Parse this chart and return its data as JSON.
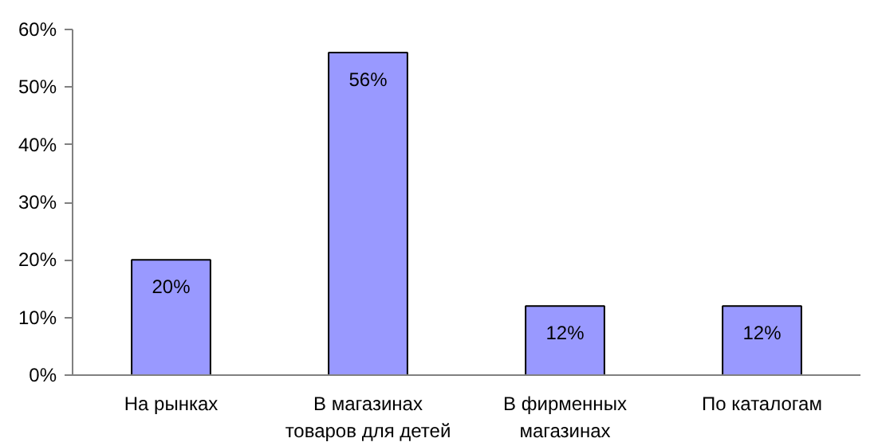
{
  "chart_data": {
    "type": "bar",
    "categories": [
      "На рынках",
      "В магазинах\nтоваров для детей",
      "В фирменных\nмагазинах",
      "По каталогам"
    ],
    "values": [
      20,
      56,
      12,
      12
    ],
    "color": "#9999ff",
    "value_labels": [
      "20%",
      "56%",
      "12%",
      "12%"
    ],
    "ylim": [
      0,
      60
    ],
    "yticks": [
      {
        "value": 0,
        "label": "0%"
      },
      {
        "value": 10,
        "label": "10%"
      },
      {
        "value": 20,
        "label": "20%"
      },
      {
        "value": 30,
        "label": "30%"
      },
      {
        "value": 40,
        "label": "40%"
      },
      {
        "value": 50,
        "label": "50%"
      },
      {
        "value": 60,
        "label": "60%"
      }
    ],
    "grid": false
  }
}
